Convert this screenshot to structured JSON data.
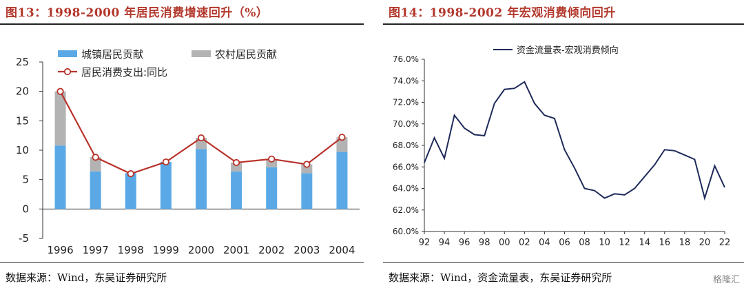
{
  "left": {
    "title": "图13：1998-2000 年居民消费增速回升（%）",
    "source": "数据来源：Wind，东吴证券研究所",
    "chart_data": {
      "type": "bar",
      "stacked": true,
      "categories": [
        "1996",
        "1997",
        "1998",
        "1999",
        "2000",
        "2001",
        "2002",
        "2003",
        "2004"
      ],
      "series": [
        {
          "name": "城镇居民贡献",
          "kind": "bar",
          "color": "#5aa9e6",
          "values": [
            10.8,
            6.4,
            6.1,
            8.0,
            10.2,
            6.4,
            7.1,
            6.1,
            9.7
          ]
        },
        {
          "name": "农村居民贡献",
          "kind": "bar",
          "color": "#b3b3b3",
          "values": [
            9.2,
            2.4,
            -0.1,
            0.0,
            1.9,
            1.5,
            1.4,
            1.5,
            2.5
          ]
        },
        {
          "name": "居民消费支出:同比",
          "kind": "line",
          "color": "#b8322a",
          "values": [
            20.0,
            8.8,
            6.0,
            8.0,
            12.1,
            7.9,
            8.5,
            7.6,
            12.2
          ]
        }
      ],
      "yticks": [
        -5,
        0,
        5,
        10,
        15,
        20,
        25
      ],
      "ylim": [
        -5,
        25
      ],
      "legend": "top-left"
    }
  },
  "right": {
    "title": "图14：1998-2002 年宏观消费倾向回升",
    "source": "数据来源：Wind，资金流量表，东吴证券研究所",
    "watermark": "格隆汇",
    "chart_data": {
      "type": "line",
      "x": [
        1992,
        1993,
        1994,
        1995,
        1996,
        1997,
        1998,
        1999,
        2000,
        2001,
        2002,
        2003,
        2004,
        2005,
        2006,
        2007,
        2008,
        2009,
        2010,
        2011,
        2012,
        2013,
        2014,
        2015,
        2016,
        2017,
        2018,
        2019,
        2020,
        2021,
        2022
      ],
      "xticks": [
        "92",
        "94",
        "96",
        "98",
        "00",
        "02",
        "04",
        "06",
        "08",
        "10",
        "12",
        "14",
        "16",
        "18",
        "20",
        "22"
      ],
      "series": [
        {
          "name": "资金流量表-宏观消费倾向",
          "color": "#1f2a5a",
          "values": [
            66.4,
            68.7,
            66.8,
            70.8,
            69.6,
            69.0,
            68.9,
            71.9,
            73.2,
            73.3,
            73.9,
            71.9,
            70.8,
            70.5,
            67.6,
            65.9,
            64.0,
            63.8,
            63.1,
            63.5,
            63.4,
            64.0,
            65.1,
            66.2,
            67.6,
            67.5,
            67.1,
            66.7,
            63.1,
            66.1,
            64.1
          ]
        }
      ],
      "yticks": [
        "60.0%",
        "62.0%",
        "64.0%",
        "66.0%",
        "68.0%",
        "70.0%",
        "72.0%",
        "74.0%",
        "76.0%"
      ],
      "ylim": [
        60,
        76
      ],
      "legend": "top-center"
    }
  }
}
